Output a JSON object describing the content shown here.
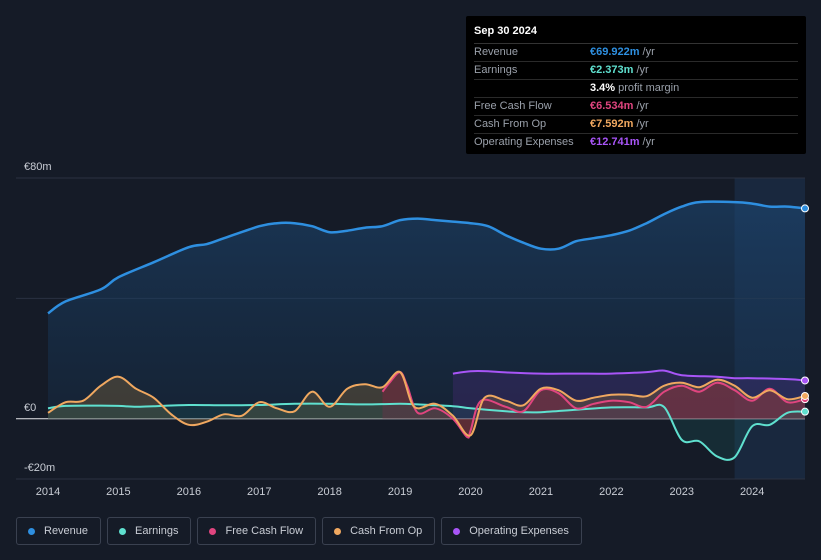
{
  "tooltip": {
    "date": "Sep 30 2024",
    "rows": [
      {
        "label": "Revenue",
        "value": "€69.922m",
        "unit": "/yr",
        "color": "#2e8fe0"
      },
      {
        "label": "Earnings",
        "value": "€2.373m",
        "unit": "/yr",
        "color": "#5fe0cf"
      },
      {
        "label": "",
        "value": "3.4%",
        "unit": "profit margin",
        "color": "#ffffff"
      },
      {
        "label": "Free Cash Flow",
        "value": "€6.534m",
        "unit": "/yr",
        "color": "#e0457f"
      },
      {
        "label": "Cash From Op",
        "value": "€7.592m",
        "unit": "/yr",
        "color": "#f0a860"
      },
      {
        "label": "Operating Expenses",
        "value": "€12.741m",
        "unit": "/yr",
        "color": "#a855f7"
      }
    ]
  },
  "legend": [
    {
      "label": "Revenue",
      "color": "#2e8fe0"
    },
    {
      "label": "Earnings",
      "color": "#5fe0cf"
    },
    {
      "label": "Free Cash Flow",
      "color": "#e0457f"
    },
    {
      "label": "Cash From Op",
      "color": "#f0a860"
    },
    {
      "label": "Operating Expenses",
      "color": "#a855f7"
    }
  ],
  "chart_data": {
    "type": "area",
    "title": "",
    "xlabel": "",
    "ylabel": "",
    "y_tick_labels": [
      "€80m",
      "€0",
      "-€20m"
    ],
    "ylim": [
      -20,
      80
    ],
    "xlim": [
      2014,
      2024.75
    ],
    "x_ticks": [
      2014,
      2015,
      2016,
      2017,
      2018,
      2019,
      2020,
      2021,
      2022,
      2023,
      2024
    ],
    "highlight_start": 2023.75,
    "series": [
      {
        "name": "Revenue",
        "color": "#2e8fe0",
        "points": [
          [
            2014,
            35
          ],
          [
            2014.25,
            39
          ],
          [
            2014.75,
            43
          ],
          [
            2015,
            47
          ],
          [
            2015.5,
            52
          ],
          [
            2016,
            57
          ],
          [
            2016.25,
            58
          ],
          [
            2016.5,
            60
          ],
          [
            2017,
            64
          ],
          [
            2017.25,
            65
          ],
          [
            2017.5,
            65
          ],
          [
            2017.75,
            64
          ],
          [
            2018,
            62
          ],
          [
            2018.25,
            62.5
          ],
          [
            2018.5,
            63.5
          ],
          [
            2018.75,
            64
          ],
          [
            2019,
            66
          ],
          [
            2019.25,
            66.5
          ],
          [
            2019.5,
            66
          ],
          [
            2019.75,
            65.5
          ],
          [
            2020,
            65
          ],
          [
            2020.25,
            64
          ],
          [
            2020.5,
            61
          ],
          [
            2020.75,
            58.5
          ],
          [
            2021,
            56.5
          ],
          [
            2021.25,
            56.5
          ],
          [
            2021.5,
            59
          ],
          [
            2021.75,
            60
          ],
          [
            2022,
            61
          ],
          [
            2022.25,
            62.5
          ],
          [
            2022.5,
            65
          ],
          [
            2022.75,
            68
          ],
          [
            2023,
            70.5
          ],
          [
            2023.25,
            72
          ],
          [
            2023.75,
            72
          ],
          [
            2024,
            71.5
          ],
          [
            2024.25,
            70.5
          ],
          [
            2024.5,
            70.5
          ],
          [
            2024.75,
            69.9
          ]
        ]
      },
      {
        "name": "Earnings",
        "color": "#5fe0cf",
        "points": [
          [
            2014,
            3.5
          ],
          [
            2014.25,
            4.3
          ],
          [
            2014.75,
            4.4
          ],
          [
            2015,
            4.3
          ],
          [
            2015.25,
            4
          ],
          [
            2015.5,
            4.2
          ],
          [
            2016,
            4.6
          ],
          [
            2016.5,
            4.5
          ],
          [
            2017,
            4.6
          ],
          [
            2017.5,
            5
          ],
          [
            2018,
            5
          ],
          [
            2018.5,
            4.8
          ],
          [
            2019,
            5
          ],
          [
            2019.25,
            4.8
          ],
          [
            2019.75,
            4.2
          ],
          [
            2020,
            3.5
          ],
          [
            2020.5,
            2.5
          ],
          [
            2020.75,
            2.2
          ],
          [
            2021,
            2.2
          ],
          [
            2021.5,
            3
          ],
          [
            2022,
            3.8
          ],
          [
            2022.5,
            3.8
          ],
          [
            2022.75,
            3.9
          ],
          [
            2023,
            -7
          ],
          [
            2023.25,
            -7.5
          ],
          [
            2023.5,
            -12.5
          ],
          [
            2023.75,
            -12.8
          ],
          [
            2024,
            -2.5
          ],
          [
            2024.25,
            -2
          ],
          [
            2024.5,
            2
          ],
          [
            2024.75,
            2.37
          ]
        ]
      },
      {
        "name": "Free Cash Flow",
        "color": "#e0457f",
        "start": 2018.75,
        "points": [
          [
            2018.75,
            9
          ],
          [
            2018.85,
            12
          ],
          [
            2019,
            15.5
          ],
          [
            2019.1,
            11
          ],
          [
            2019.25,
            2
          ],
          [
            2019.5,
            3.5
          ],
          [
            2019.75,
            0
          ],
          [
            2019.95,
            -6
          ],
          [
            2020,
            -4
          ],
          [
            2020.15,
            6
          ],
          [
            2020.5,
            4
          ],
          [
            2020.75,
            2.5
          ],
          [
            2021,
            9.5
          ],
          [
            2021.25,
            8.5
          ],
          [
            2021.5,
            3.5
          ],
          [
            2021.75,
            5
          ],
          [
            2022,
            6
          ],
          [
            2022.25,
            5.5
          ],
          [
            2022.5,
            4
          ],
          [
            2022.75,
            9
          ],
          [
            2023,
            11
          ],
          [
            2023.25,
            9
          ],
          [
            2023.5,
            12
          ],
          [
            2023.75,
            9.5
          ],
          [
            2024,
            6
          ],
          [
            2024.25,
            10
          ],
          [
            2024.5,
            5.5
          ],
          [
            2024.75,
            6.53
          ]
        ]
      },
      {
        "name": "Cash From Op",
        "color": "#f0a860",
        "points": [
          [
            2014,
            2
          ],
          [
            2014.25,
            5.5
          ],
          [
            2014.5,
            6
          ],
          [
            2014.75,
            11
          ],
          [
            2015,
            14
          ],
          [
            2015.25,
            10
          ],
          [
            2015.5,
            7
          ],
          [
            2015.75,
            1.5
          ],
          [
            2016,
            -2
          ],
          [
            2016.25,
            -1
          ],
          [
            2016.5,
            1.5
          ],
          [
            2016.75,
            1
          ],
          [
            2017,
            5.5
          ],
          [
            2017.25,
            3.5
          ],
          [
            2017.5,
            2.5
          ],
          [
            2017.75,
            9
          ],
          [
            2018,
            4
          ],
          [
            2018.25,
            10
          ],
          [
            2018.5,
            11.5
          ],
          [
            2018.75,
            10.5
          ],
          [
            2019,
            15.5
          ],
          [
            2019.2,
            4
          ],
          [
            2019.5,
            5
          ],
          [
            2019.75,
            1
          ],
          [
            2020,
            -5.5
          ],
          [
            2020.2,
            7
          ],
          [
            2020.5,
            6
          ],
          [
            2020.75,
            4.5
          ],
          [
            2021,
            10
          ],
          [
            2021.25,
            9.5
          ],
          [
            2021.5,
            6
          ],
          [
            2021.75,
            7
          ],
          [
            2022,
            8
          ],
          [
            2022.25,
            8
          ],
          [
            2022.5,
            7.5
          ],
          [
            2022.75,
            11
          ],
          [
            2023,
            12
          ],
          [
            2023.25,
            10.5
          ],
          [
            2023.5,
            13
          ],
          [
            2023.75,
            11
          ],
          [
            2024,
            7
          ],
          [
            2024.25,
            9.5
          ],
          [
            2024.5,
            6.5
          ],
          [
            2024.75,
            7.59
          ]
        ]
      },
      {
        "name": "Operating Expenses",
        "color": "#a855f7",
        "start": 2019.75,
        "points": [
          [
            2019.75,
            15
          ],
          [
            2020,
            15.8
          ],
          [
            2020.25,
            15.8
          ],
          [
            2020.5,
            15.4
          ],
          [
            2021,
            15
          ],
          [
            2021.5,
            15
          ],
          [
            2022,
            15
          ],
          [
            2022.5,
            15.5
          ],
          [
            2022.75,
            16
          ],
          [
            2023,
            14.5
          ],
          [
            2023.5,
            14
          ],
          [
            2023.75,
            13.5
          ],
          [
            2024,
            13.5
          ],
          [
            2024.5,
            13.2
          ],
          [
            2024.75,
            12.74
          ]
        ]
      }
    ]
  }
}
